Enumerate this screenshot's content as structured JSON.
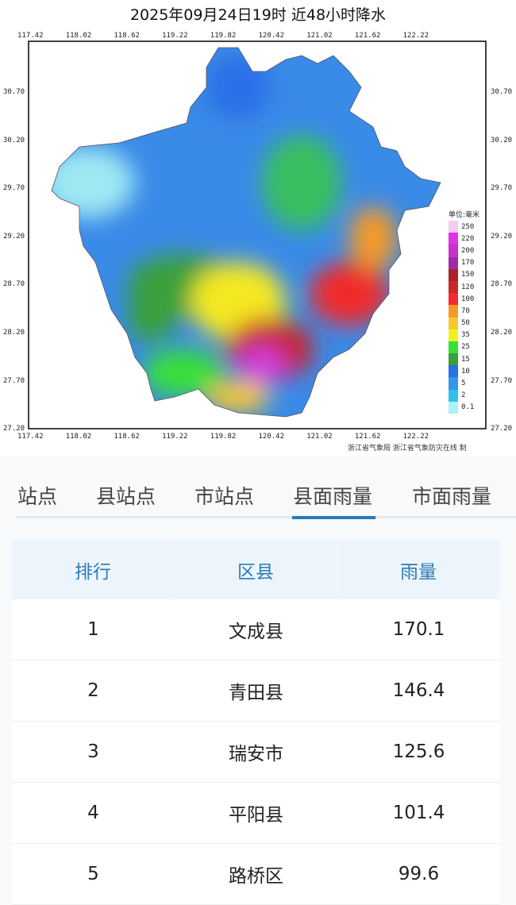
{
  "title": "2025年09月24日19时  近48小时降水",
  "map": {
    "lon_ticks": [
      "117.42",
      "118.02",
      "118.62",
      "119.22",
      "119.82",
      "120.42",
      "121.02",
      "121.62",
      "122.22"
    ],
    "lat_ticks": [
      "30.70",
      "30.20",
      "29.70",
      "29.20",
      "28.70",
      "28.20",
      "27.70",
      "27.20"
    ],
    "credit": "浙江省气象局 浙江省气象防灾在线 制",
    "legend": {
      "unit": "单位:毫米",
      "items": [
        {
          "label": "250",
          "color": "#f7c8f0"
        },
        {
          "label": "220",
          "color": "#e033e8"
        },
        {
          "label": "200",
          "color": "#c830c8"
        },
        {
          "label": "170",
          "color": "#a02aa8"
        },
        {
          "label": "150",
          "color": "#a8222a"
        },
        {
          "label": "120",
          "color": "#c82828"
        },
        {
          "label": "100",
          "color": "#f02c2c"
        },
        {
          "label": "70",
          "color": "#f59a28"
        },
        {
          "label": "50",
          "color": "#f8c830"
        },
        {
          "label": "35",
          "color": "#f4f020"
        },
        {
          "label": "25",
          "color": "#38e038"
        },
        {
          "label": "15",
          "color": "#3aa03a"
        },
        {
          "label": "10",
          "color": "#2a6ee8"
        },
        {
          "label": "5",
          "color": "#3096ee"
        },
        {
          "label": "2",
          "color": "#30c0f0"
        },
        {
          "label": "0.1",
          "color": "#a8f4f8"
        }
      ]
    }
  },
  "tabs": [
    {
      "label": "站点"
    },
    {
      "label": "县站点"
    },
    {
      "label": "市站点"
    },
    {
      "label": "县面雨量",
      "active": true
    },
    {
      "label": "市面雨量"
    }
  ],
  "table": {
    "headers": [
      "排行",
      "区县",
      "雨量"
    ],
    "rows": [
      [
        "1",
        "文成县",
        "170.1"
      ],
      [
        "2",
        "青田县",
        "146.4"
      ],
      [
        "3",
        "瑞安市",
        "125.6"
      ],
      [
        "4",
        "平阳县",
        "101.4"
      ],
      [
        "5",
        "路桥区",
        "99.6"
      ]
    ]
  }
}
